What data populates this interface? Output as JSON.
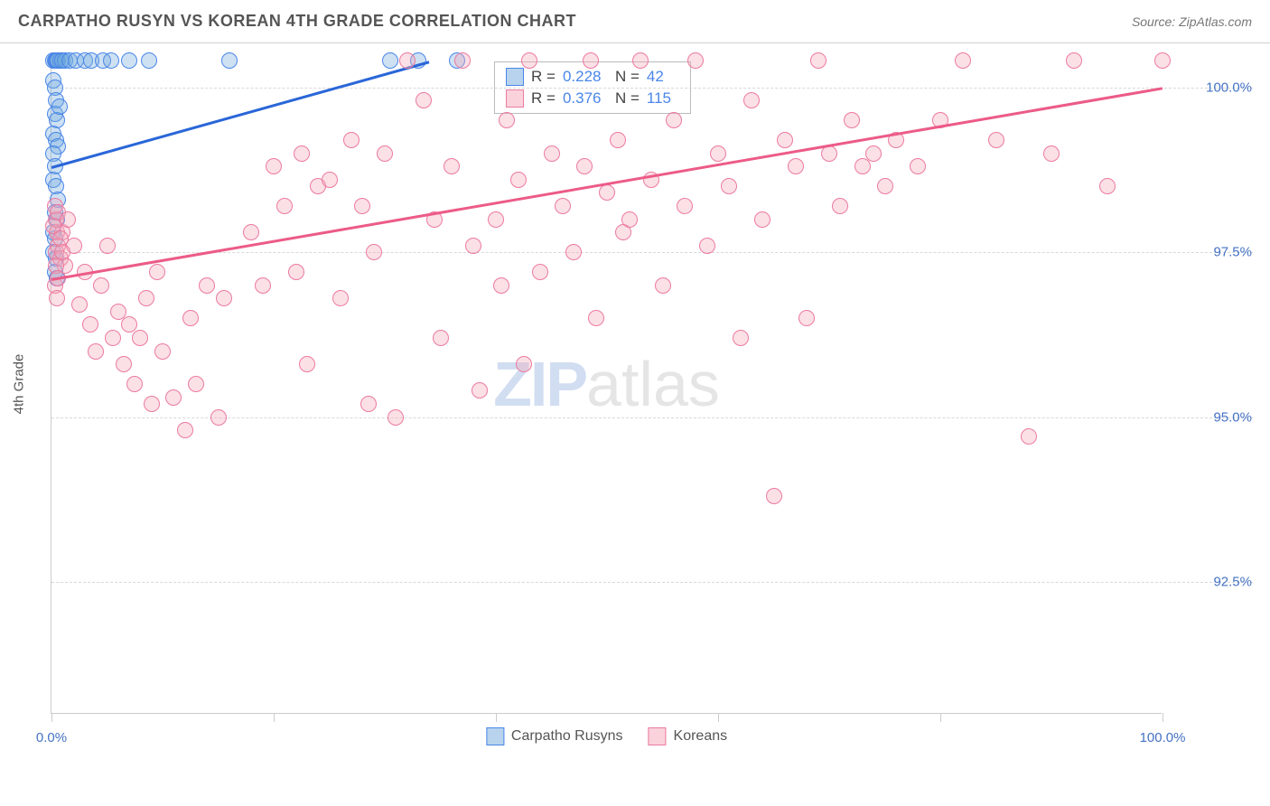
{
  "header": {
    "title": "CARPATHO RUSYN VS KOREAN 4TH GRADE CORRELATION CHART",
    "source": "Source: ZipAtlas.com"
  },
  "chart": {
    "type": "scatter",
    "y_axis_title": "4th Grade",
    "background_color": "#ffffff",
    "grid_color": "#d8d8d8",
    "axis_color": "#cccccc",
    "label_color": "#4472c4",
    "label_fontsize": 15,
    "xlim": [
      0,
      100
    ],
    "ylim": [
      90.5,
      100.5
    ],
    "x_ticks": [
      0,
      20,
      40,
      60,
      80,
      100
    ],
    "x_tick_labels": [
      "0.0%",
      "",
      "",
      "",
      "",
      "100.0%"
    ],
    "y_ticks": [
      92.5,
      95.0,
      97.5,
      100.0
    ],
    "y_tick_labels": [
      "92.5%",
      "95.0%",
      "97.5%",
      "100.0%"
    ],
    "marker_radius": 9,
    "marker_opacity": 0.5,
    "series": [
      {
        "name": "Carpatho Rusyns",
        "color": "#6fa8dc",
        "fill": "rgba(111,168,220,0.35)",
        "border": "#4a86e8",
        "r": 0.228,
        "n": 42,
        "trend": {
          "x1": 0,
          "y1": 98.8,
          "x2": 34,
          "y2": 100.4,
          "color": "#2a66d8",
          "width": 3
        },
        "points": [
          [
            0.2,
            100.4
          ],
          [
            0.3,
            100.4
          ],
          [
            0.4,
            100.4
          ],
          [
            0.5,
            100.4
          ],
          [
            0.6,
            100.4
          ],
          [
            0.8,
            100.4
          ],
          [
            1.0,
            100.4
          ],
          [
            1.2,
            100.4
          ],
          [
            1.6,
            100.4
          ],
          [
            2.2,
            100.4
          ],
          [
            3.0,
            100.4
          ],
          [
            3.6,
            100.4
          ],
          [
            4.6,
            100.4
          ],
          [
            5.4,
            100.4
          ],
          [
            7.0,
            100.4
          ],
          [
            8.8,
            100.4
          ],
          [
            0.2,
            100.1
          ],
          [
            0.3,
            100.0
          ],
          [
            0.4,
            99.8
          ],
          [
            0.3,
            99.6
          ],
          [
            0.5,
            99.5
          ],
          [
            0.7,
            99.7
          ],
          [
            0.2,
            99.3
          ],
          [
            0.4,
            99.2
          ],
          [
            0.6,
            99.1
          ],
          [
            0.2,
            99.0
          ],
          [
            0.3,
            98.8
          ],
          [
            0.2,
            98.6
          ],
          [
            0.4,
            98.5
          ],
          [
            0.6,
            98.3
          ],
          [
            0.3,
            98.1
          ],
          [
            0.5,
            98.0
          ],
          [
            0.2,
            97.8
          ],
          [
            0.3,
            97.7
          ],
          [
            0.2,
            97.5
          ],
          [
            0.4,
            97.4
          ],
          [
            0.3,
            97.2
          ],
          [
            0.5,
            97.1
          ],
          [
            16.0,
            100.4
          ],
          [
            30.5,
            100.4
          ],
          [
            33.0,
            100.4
          ],
          [
            36.5,
            100.4
          ]
        ]
      },
      {
        "name": "Koreans",
        "color": "#f4a6b8",
        "fill": "rgba(244,166,184,0.35)",
        "border": "#ec7aa0",
        "r": 0.376,
        "n": 115,
        "trend": {
          "x1": 0,
          "y1": 97.1,
          "x2": 100,
          "y2": 100.0,
          "color": "#ec5b88",
          "width": 3
        },
        "points": [
          [
            0.5,
            97.8
          ],
          [
            0.6,
            97.6
          ],
          [
            0.4,
            97.5
          ],
          [
            0.8,
            97.4
          ],
          [
            1.0,
            97.8
          ],
          [
            1.2,
            97.3
          ],
          [
            0.3,
            97.0
          ],
          [
            0.5,
            96.8
          ],
          [
            2.0,
            97.6
          ],
          [
            2.5,
            96.7
          ],
          [
            3.0,
            97.2
          ],
          [
            3.5,
            96.4
          ],
          [
            4.0,
            96.0
          ],
          [
            4.5,
            97.0
          ],
          [
            5.0,
            97.6
          ],
          [
            5.5,
            96.2
          ],
          [
            6.0,
            96.6
          ],
          [
            6.5,
            95.8
          ],
          [
            7.0,
            96.4
          ],
          [
            7.5,
            95.5
          ],
          [
            8.0,
            96.2
          ],
          [
            8.5,
            96.8
          ],
          [
            9.0,
            95.2
          ],
          [
            9.5,
            97.2
          ],
          [
            10.0,
            96.0
          ],
          [
            11.0,
            95.3
          ],
          [
            12.0,
            94.8
          ],
          [
            12.5,
            96.5
          ],
          [
            13.0,
            95.5
          ],
          [
            14.0,
            97.0
          ],
          [
            15.0,
            95.0
          ],
          [
            15.5,
            96.8
          ],
          [
            18.0,
            97.8
          ],
          [
            19.0,
            97.0
          ],
          [
            20.0,
            98.8
          ],
          [
            21.0,
            98.2
          ],
          [
            22.0,
            97.2
          ],
          [
            22.5,
            99.0
          ],
          [
            23.0,
            95.8
          ],
          [
            24.0,
            98.5
          ],
          [
            25.0,
            98.6
          ],
          [
            26.0,
            96.8
          ],
          [
            27.0,
            99.2
          ],
          [
            28.0,
            98.2
          ],
          [
            28.5,
            95.2
          ],
          [
            29.0,
            97.5
          ],
          [
            30.0,
            99.0
          ],
          [
            31.0,
            95.0
          ],
          [
            32.0,
            100.4
          ],
          [
            33.5,
            99.8
          ],
          [
            34.5,
            98.0
          ],
          [
            35.0,
            96.2
          ],
          [
            36.0,
            98.8
          ],
          [
            37.0,
            100.4
          ],
          [
            38.0,
            97.6
          ],
          [
            38.5,
            95.4
          ],
          [
            40.0,
            98.0
          ],
          [
            40.5,
            97.0
          ],
          [
            41.0,
            99.5
          ],
          [
            42.0,
            98.6
          ],
          [
            42.5,
            95.8
          ],
          [
            43.0,
            100.4
          ],
          [
            44.0,
            97.2
          ],
          [
            45.0,
            99.0
          ],
          [
            46.0,
            98.2
          ],
          [
            47.0,
            97.5
          ],
          [
            48.0,
            98.8
          ],
          [
            48.5,
            100.4
          ],
          [
            49.0,
            96.5
          ],
          [
            50.0,
            98.4
          ],
          [
            51.0,
            99.2
          ],
          [
            51.5,
            97.8
          ],
          [
            52.0,
            98.0
          ],
          [
            53.0,
            100.4
          ],
          [
            54.0,
            98.6
          ],
          [
            55.0,
            97.0
          ],
          [
            56.0,
            99.5
          ],
          [
            57.0,
            98.2
          ],
          [
            58.0,
            100.4
          ],
          [
            59.0,
            97.6
          ],
          [
            60.0,
            99.0
          ],
          [
            61.0,
            98.5
          ],
          [
            62.0,
            96.2
          ],
          [
            63.0,
            99.8
          ],
          [
            64.0,
            98.0
          ],
          [
            65.0,
            93.8
          ],
          [
            66.0,
            99.2
          ],
          [
            67.0,
            98.8
          ],
          [
            68.0,
            96.5
          ],
          [
            69.0,
            100.4
          ],
          [
            70.0,
            99.0
          ],
          [
            71.0,
            98.2
          ],
          [
            72.0,
            99.5
          ],
          [
            73.0,
            98.8
          ],
          [
            74.0,
            99.0
          ],
          [
            75.0,
            98.5
          ],
          [
            76.0,
            99.2
          ],
          [
            78.0,
            98.8
          ],
          [
            80.0,
            99.5
          ],
          [
            82.0,
            100.4
          ],
          [
            85.0,
            99.2
          ],
          [
            88.0,
            94.7
          ],
          [
            90.0,
            99.0
          ],
          [
            92.0,
            100.4
          ],
          [
            95.0,
            98.5
          ],
          [
            100.0,
            100.4
          ],
          [
            0.4,
            98.0
          ],
          [
            0.3,
            98.2
          ],
          [
            0.6,
            98.1
          ],
          [
            1.5,
            98.0
          ],
          [
            0.2,
            97.9
          ],
          [
            0.8,
            97.7
          ],
          [
            1.0,
            97.5
          ],
          [
            0.4,
            97.3
          ],
          [
            0.6,
            97.1
          ]
        ]
      }
    ],
    "stats_box": {
      "rows": [
        {
          "swatch_fill": "rgba(111,168,220,0.5)",
          "swatch_border": "#4a86e8",
          "r_label": "R =",
          "r_val": "0.228",
          "n_label": "N =",
          "n_val": "42"
        },
        {
          "swatch_fill": "rgba(244,166,184,0.5)",
          "swatch_border": "#ec7aa0",
          "r_label": "R =",
          "r_val": "0.376",
          "n_label": "N =",
          "n_val": "115"
        }
      ]
    },
    "legend": [
      {
        "label": "Carpatho Rusyns",
        "fill": "rgba(111,168,220,0.5)",
        "border": "#4a86e8"
      },
      {
        "label": "Koreans",
        "fill": "rgba(244,166,184,0.5)",
        "border": "#ec7aa0"
      }
    ],
    "watermark": {
      "zip": "ZIP",
      "atlas": "atlas"
    }
  }
}
